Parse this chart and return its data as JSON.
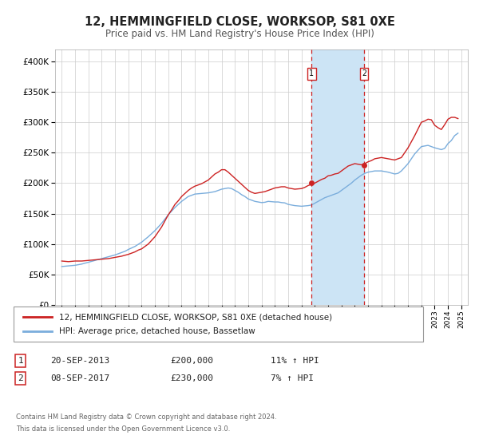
{
  "title": "12, HEMMINGFIELD CLOSE, WORKSOP, S81 0XE",
  "subtitle": "Price paid vs. HM Land Registry's House Price Index (HPI)",
  "legend_line1": "12, HEMMINGFIELD CLOSE, WORKSOP, S81 0XE (detached house)",
  "legend_line2": "HPI: Average price, detached house, Bassetlaw",
  "annotation1_label": "1",
  "annotation1_date": "20-SEP-2013",
  "annotation1_price": "£200,000",
  "annotation1_hpi": "11% ↑ HPI",
  "annotation2_label": "2",
  "annotation2_date": "08-SEP-2017",
  "annotation2_price": "£230,000",
  "annotation2_hpi": "7% ↑ HPI",
  "footer_line1": "Contains HM Land Registry data © Crown copyright and database right 2024.",
  "footer_line2": "This data is licensed under the Open Government Licence v3.0.",
  "line1_color": "#cc2222",
  "line2_color": "#7aaddc",
  "shaded_color": "#cce4f5",
  "vline_color": "#cc2222",
  "vline1_x": 2013.75,
  "vline2_x": 2017.7,
  "marker1_x": 2013.75,
  "marker1_y": 200000,
  "marker2_x": 2017.7,
  "marker2_y": 230000,
  "ylim_min": 0,
  "ylim_max": 420000,
  "xlim_min": 1994.5,
  "xlim_max": 2025.5,
  "yticks": [
    0,
    50000,
    100000,
    150000,
    200000,
    250000,
    300000,
    350000,
    400000
  ],
  "xticks": [
    1995,
    1996,
    1997,
    1998,
    1999,
    2000,
    2001,
    2002,
    2003,
    2004,
    2005,
    2006,
    2007,
    2008,
    2009,
    2010,
    2011,
    2012,
    2013,
    2014,
    2015,
    2016,
    2017,
    2018,
    2019,
    2020,
    2021,
    2022,
    2023,
    2024,
    2025
  ],
  "hpi_line_x": [
    1995,
    1995.25,
    1995.5,
    1995.75,
    1996,
    1996.25,
    1996.5,
    1996.75,
    1997,
    1997.25,
    1997.5,
    1997.75,
    1998,
    1998.25,
    1998.5,
    1998.75,
    1999,
    1999.25,
    1999.5,
    1999.75,
    2000,
    2000.25,
    2000.5,
    2000.75,
    2001,
    2001.25,
    2001.5,
    2001.75,
    2002,
    2002.25,
    2002.5,
    2002.75,
    2003,
    2003.25,
    2003.5,
    2003.75,
    2004,
    2004.25,
    2004.5,
    2004.75,
    2005,
    2005.25,
    2005.5,
    2005.75,
    2006,
    2006.25,
    2006.5,
    2006.75,
    2007,
    2007.25,
    2007.5,
    2007.75,
    2008,
    2008.25,
    2008.5,
    2008.75,
    2009,
    2009.25,
    2009.5,
    2009.75,
    2010,
    2010.25,
    2010.5,
    2010.75,
    2011,
    2011.25,
    2011.5,
    2011.75,
    2012,
    2012.25,
    2012.5,
    2012.75,
    2013,
    2013.25,
    2013.5,
    2013.75,
    2014,
    2014.25,
    2014.5,
    2014.75,
    2015,
    2015.25,
    2015.5,
    2015.75,
    2016,
    2016.25,
    2016.5,
    2016.75,
    2017,
    2017.25,
    2017.5,
    2017.75,
    2018,
    2018.25,
    2018.5,
    2018.75,
    2019,
    2019.25,
    2019.5,
    2019.75,
    2020,
    2020.25,
    2020.5,
    2020.75,
    2021,
    2021.25,
    2021.5,
    2021.75,
    2022,
    2022.25,
    2022.5,
    2022.75,
    2023,
    2023.25,
    2023.5,
    2023.75,
    2024,
    2024.25,
    2024.5,
    2024.75
  ],
  "hpi_line_y": [
    63000,
    63500,
    64000,
    64500,
    65000,
    66000,
    67000,
    68500,
    70000,
    71500,
    73000,
    74500,
    76000,
    77500,
    79000,
    80500,
    82000,
    84000,
    86000,
    88000,
    91000,
    93500,
    96000,
    99500,
    103000,
    107500,
    112000,
    117000,
    122000,
    128000,
    134000,
    141000,
    148000,
    154000,
    160000,
    165000,
    170000,
    174000,
    178000,
    180000,
    182000,
    182500,
    183000,
    183500,
    184000,
    185000,
    186000,
    188000,
    190000,
    191000,
    192000,
    191000,
    188000,
    185000,
    181000,
    178000,
    174000,
    172000,
    170000,
    169000,
    168000,
    168500,
    170000,
    169500,
    169000,
    169000,
    168000,
    167500,
    165000,
    164000,
    163000,
    162500,
    162000,
    162500,
    163000,
    164000,
    167000,
    170000,
    173000,
    176000,
    178000,
    180000,
    182000,
    184000,
    188000,
    192000,
    196000,
    200000,
    205000,
    209000,
    213000,
    216000,
    218000,
    219000,
    220000,
    220000,
    220000,
    219000,
    218000,
    216500,
    215000,
    216000,
    220000,
    226000,
    232000,
    240000,
    248000,
    254000,
    260000,
    261000,
    262000,
    260000,
    258000,
    256500,
    255000,
    257000,
    265000,
    270000,
    278000,
    282000
  ],
  "price_line_x": [
    1995,
    1995.25,
    1995.5,
    1995.75,
    1996,
    1996.25,
    1996.5,
    1996.75,
    1997,
    1997.25,
    1997.5,
    1997.75,
    1998,
    1998.25,
    1998.5,
    1998.75,
    1999,
    1999.25,
    1999.5,
    1999.75,
    2000,
    2000.25,
    2000.5,
    2000.75,
    2001,
    2001.25,
    2001.5,
    2001.75,
    2002,
    2002.25,
    2002.5,
    2002.75,
    2003,
    2003.25,
    2003.5,
    2003.75,
    2004,
    2004.25,
    2004.5,
    2004.75,
    2005,
    2005.25,
    2005.5,
    2005.75,
    2006,
    2006.25,
    2006.5,
    2006.75,
    2007,
    2007.25,
    2007.5,
    2007.75,
    2008,
    2008.25,
    2008.5,
    2008.75,
    2009,
    2009.25,
    2009.5,
    2009.75,
    2010,
    2010.25,
    2010.5,
    2010.75,
    2011,
    2011.25,
    2011.5,
    2011.75,
    2012,
    2012.25,
    2012.5,
    2012.75,
    2013,
    2013.25,
    2013.5,
    2013.75,
    2014,
    2014.25,
    2014.5,
    2014.75,
    2015,
    2015.25,
    2015.5,
    2015.75,
    2016,
    2016.25,
    2016.5,
    2016.75,
    2017,
    2017.25,
    2017.5,
    2017.75,
    2018,
    2018.25,
    2018.5,
    2018.75,
    2019,
    2019.25,
    2019.5,
    2019.75,
    2020,
    2020.25,
    2020.5,
    2020.75,
    2021,
    2021.25,
    2021.5,
    2021.75,
    2022,
    2022.25,
    2022.5,
    2022.75,
    2023,
    2023.25,
    2023.5,
    2023.75,
    2024,
    2024.25,
    2024.5,
    2024.75
  ],
  "price_line_y": [
    72000,
    71500,
    71000,
    71500,
    72000,
    72000,
    72000,
    72500,
    73000,
    73500,
    74000,
    74500,
    75000,
    75500,
    76000,
    77000,
    78000,
    79000,
    80000,
    81500,
    83000,
    85000,
    87000,
    90000,
    92000,
    96000,
    100000,
    106000,
    112000,
    120000,
    128000,
    138000,
    148000,
    156000,
    165000,
    171000,
    178000,
    183000,
    188000,
    192000,
    195000,
    197000,
    199000,
    202000,
    205000,
    210000,
    215000,
    218000,
    222000,
    222000,
    218000,
    213000,
    208000,
    203000,
    198000,
    193000,
    188000,
    185000,
    183000,
    184000,
    185000,
    186000,
    188000,
    190000,
    192000,
    193000,
    194000,
    194000,
    192000,
    191000,
    190000,
    190500,
    191000,
    193000,
    196000,
    198000,
    200000,
    203000,
    206000,
    208000,
    212000,
    213000,
    215000,
    216000,
    220000,
    224000,
    228000,
    230000,
    232000,
    231000,
    230000,
    232000,
    235000,
    237000,
    240000,
    241000,
    242000,
    241000,
    240000,
    239000,
    238000,
    240000,
    242000,
    250000,
    258000,
    268000,
    278000,
    289000,
    300000,
    302000,
    305000,
    304000,
    295000,
    291000,
    288000,
    296000,
    305000,
    308000,
    308000,
    306000
  ]
}
